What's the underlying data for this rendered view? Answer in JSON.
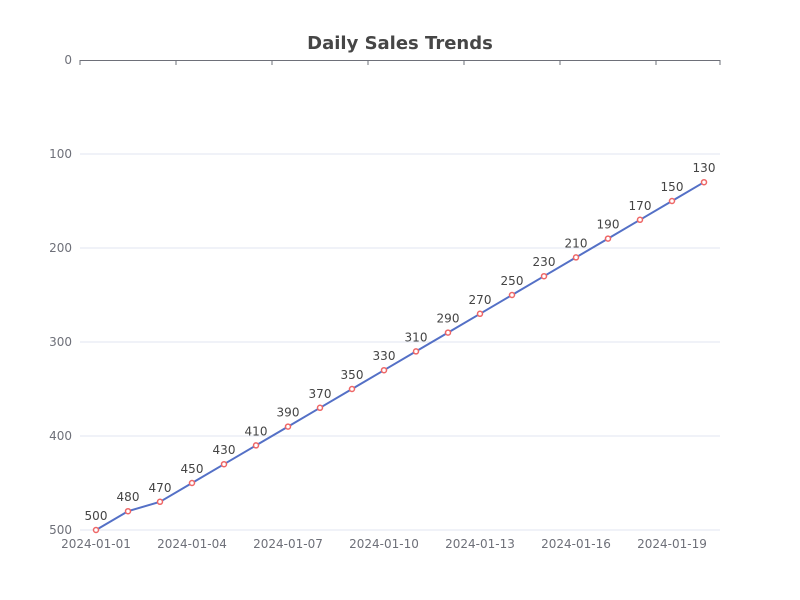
{
  "chart_data": {
    "type": "line",
    "title": "Daily Sales Trends",
    "xlabel": "",
    "ylabel": "",
    "x": [
      "2024-01-01",
      "2024-01-02",
      "2024-01-03",
      "2024-01-04",
      "2024-01-05",
      "2024-01-06",
      "2024-01-07",
      "2024-01-08",
      "2024-01-09",
      "2024-01-10",
      "2024-01-11",
      "2024-01-12",
      "2024-01-13",
      "2024-01-14",
      "2024-01-15",
      "2024-01-16",
      "2024-01-17",
      "2024-01-18",
      "2024-01-19",
      "2024-01-20"
    ],
    "x_tick_labels": [
      "2024-01-01",
      "2024-01-04",
      "2024-01-07",
      "2024-01-10",
      "2024-01-13",
      "2024-01-16",
      "2024-01-19"
    ],
    "series": [
      {
        "values": [
          500,
          480,
          470,
          450,
          430,
          410,
          390,
          370,
          350,
          330,
          310,
          290,
          270,
          250,
          230,
          210,
          190,
          170,
          150,
          130
        ]
      }
    ],
    "ylim": [
      0,
      500
    ],
    "y_inverted": true,
    "y_ticks": [
      0,
      100,
      200,
      300,
      400,
      500
    ],
    "grid": true,
    "legend": "none",
    "colors": {
      "line": "#5470c6",
      "marker": "#ee6666",
      "grid": "#e0e6f1",
      "axis": "#6e7079"
    }
  }
}
